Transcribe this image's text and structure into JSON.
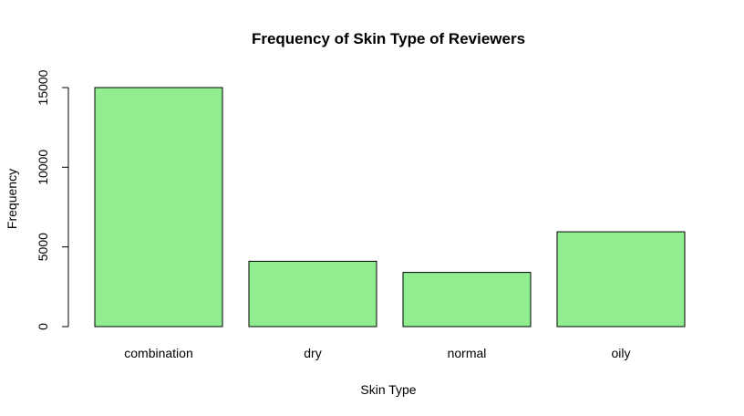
{
  "chart_data": {
    "type": "bar",
    "title": "Frequency of Skin Type of Reviewers",
    "xlabel": "Skin Type",
    "ylabel": "Frequency",
    "categories": [
      "combination",
      "dry",
      "normal",
      "oily"
    ],
    "values": [
      15000,
      4100,
      3400,
      5950
    ],
    "ylim": [
      0,
      15000
    ],
    "yticks": [
      0,
      5000,
      10000,
      15000
    ],
    "ytick_labels": [
      "0",
      "5000",
      "10000",
      "15000"
    ],
    "bar_color": "#90EE90",
    "grid": false,
    "legend": "none"
  }
}
